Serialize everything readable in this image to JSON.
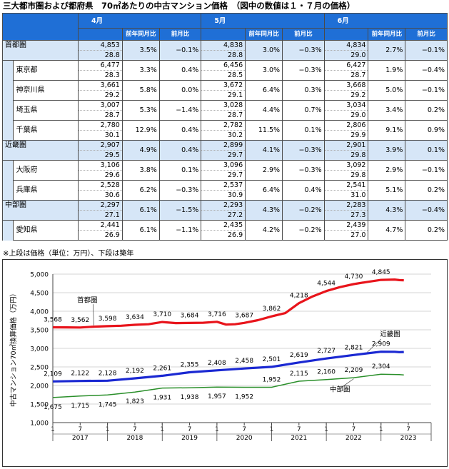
{
  "title": "三大都市圏および都府県　70㎡あたりの中古マンション価格　（図中の数値は１・７月の価格）",
  "table": {
    "months": [
      "4月",
      "5月",
      "6月"
    ],
    "sub_headers": [
      "前年同月比",
      "前月比"
    ],
    "rows": [
      {
        "name": "首都圏",
        "level": "region",
        "cells": [
          [
            "4,853",
            "28.8",
            "3.5%",
            "−0.1%"
          ],
          [
            "4,838",
            "28.8",
            "3.0%",
            "−0.3%"
          ],
          [
            "4,834",
            "29.0",
            "2.7%",
            "−0.1%"
          ]
        ]
      },
      {
        "name": "東京都",
        "level": "sub",
        "cells": [
          [
            "6,477",
            "28.3",
            "3.3%",
            "0.4%"
          ],
          [
            "6,456",
            "28.5",
            "3.0%",
            "−0.3%"
          ],
          [
            "6,427",
            "28.7",
            "1.9%",
            "−0.4%"
          ]
        ]
      },
      {
        "name": "神奈川県",
        "level": "sub",
        "cells": [
          [
            "3,661",
            "29.2",
            "5.8%",
            "0.0%"
          ],
          [
            "3,672",
            "29.1",
            "6.4%",
            "0.3%"
          ],
          [
            "3,668",
            "29.2",
            "5.0%",
            "−0.1%"
          ]
        ]
      },
      {
        "name": "埼玉県",
        "level": "sub",
        "cells": [
          [
            "3,007",
            "28.7",
            "5.3%",
            "−1.4%"
          ],
          [
            "3,028",
            "28.7",
            "4.4%",
            "0.7%"
          ],
          [
            "3,034",
            "29.0",
            "3.4%",
            "0.2%"
          ]
        ]
      },
      {
        "name": "千葉県",
        "level": "sub",
        "cells": [
          [
            "2,780",
            "30.1",
            "12.9%",
            "0.4%"
          ],
          [
            "2,782",
            "30.2",
            "11.5%",
            "0.1%"
          ],
          [
            "2,806",
            "29.9",
            "9.1%",
            "0.9%"
          ]
        ]
      },
      {
        "name": "近畿圏",
        "level": "region",
        "cells": [
          [
            "2,907",
            "29.5",
            "4.9%",
            "0.4%"
          ],
          [
            "2,899",
            "29.7",
            "4.1%",
            "−0.3%"
          ],
          [
            "2,901",
            "29.8",
            "3.9%",
            "0.1%"
          ]
        ]
      },
      {
        "name": "大阪府",
        "level": "sub",
        "cells": [
          [
            "3,106",
            "29.6",
            "3.8%",
            "0.1%"
          ],
          [
            "3,096",
            "29.7",
            "2.9%",
            "−0.3%"
          ],
          [
            "3,092",
            "29.8",
            "2.9%",
            "−0.1%"
          ]
        ]
      },
      {
        "name": "兵庫県",
        "level": "sub",
        "cells": [
          [
            "2,528",
            "30.6",
            "6.2%",
            "−0.3%"
          ],
          [
            "2,537",
            "30.9",
            "6.4%",
            "0.4%"
          ],
          [
            "2,541",
            "31.0",
            "5.1%",
            "0.2%"
          ]
        ]
      },
      {
        "name": "中部圏",
        "level": "region",
        "cells": [
          [
            "2,297",
            "27.1",
            "6.1%",
            "−1.5%"
          ],
          [
            "2,293",
            "27.2",
            "4.3%",
            "−0.2%"
          ],
          [
            "2,283",
            "27.3",
            "4.3%",
            "−0.4%"
          ]
        ]
      },
      {
        "name": "愛知県",
        "level": "sub",
        "cells": [
          [
            "2,441",
            "26.9",
            "6.1%",
            "−1.1%"
          ],
          [
            "2,435",
            "26.9",
            "4.2%",
            "−0.2%"
          ],
          [
            "2,439",
            "27.0",
            "4.7%",
            "0.2%"
          ]
        ]
      }
    ]
  },
  "note": "※上段は価格（単位：万円）、下段は築年",
  "colors": {
    "header_blue": "#1f6fd6",
    "region_fill": "#d6e6f7",
    "shutoken": "#e8141b",
    "kinki": "#1a28d2",
    "chubu": "#2a8f2a"
  },
  "chart_data": {
    "type": "line",
    "ylabel": "中古マンション70㎡換算価格（万円）",
    "ylim": [
      1000,
      5000
    ],
    "yticks": [
      "1,000",
      "1,500",
      "2,000",
      "2,500",
      "3,000",
      "3,500",
      "4,000",
      "4,500",
      "5,000"
    ],
    "x_month_labels": [
      "1",
      "7",
      "1",
      "7",
      "1",
      "7",
      "1",
      "7",
      "1",
      "7",
      "1",
      "7",
      "1",
      "7"
    ],
    "x_years": [
      "2017",
      "2018",
      "2019",
      "2020",
      "2021",
      "2022",
      "2023"
    ],
    "x_start": "2017-01",
    "x_end": "2023-12",
    "series": [
      {
        "name": "首都圏",
        "color": "#e8141b",
        "points": [
          [
            "2017-01",
            3568
          ],
          [
            "2017-04",
            3565
          ],
          [
            "2017-07",
            3562
          ],
          [
            "2017-10",
            3585
          ],
          [
            "2018-01",
            3598
          ],
          [
            "2018-04",
            3610
          ],
          [
            "2018-07",
            3634
          ],
          [
            "2018-10",
            3650
          ],
          [
            "2019-01",
            3710
          ],
          [
            "2019-04",
            3680
          ],
          [
            "2019-07",
            3684
          ],
          [
            "2019-10",
            3690
          ],
          [
            "2020-01",
            3716
          ],
          [
            "2020-03",
            3640
          ],
          [
            "2020-05",
            3650
          ],
          [
            "2020-07",
            3687
          ],
          [
            "2020-10",
            3760
          ],
          [
            "2021-01",
            3862
          ],
          [
            "2021-04",
            3950
          ],
          [
            "2021-07",
            4218
          ],
          [
            "2021-10",
            4400
          ],
          [
            "2022-01",
            4544
          ],
          [
            "2022-04",
            4650
          ],
          [
            "2022-07",
            4730
          ],
          [
            "2022-10",
            4790
          ],
          [
            "2023-01",
            4845
          ],
          [
            "2023-04",
            4853
          ],
          [
            "2023-05",
            4838
          ],
          [
            "2023-06",
            4834
          ]
        ],
        "labels": [
          [
            "2017-01",
            "3,568"
          ],
          [
            "2017-07",
            "3,562"
          ],
          [
            "2018-01",
            "3,598"
          ],
          [
            "2018-07",
            "3,634"
          ],
          [
            "2019-01",
            "3,710"
          ],
          [
            "2019-07",
            "3,684"
          ],
          [
            "2020-01",
            "3,716"
          ],
          [
            "2020-07",
            "3,687"
          ],
          [
            "2021-01",
            "3,862"
          ],
          [
            "2021-07",
            "4,218"
          ],
          [
            "2022-01",
            "4,544"
          ],
          [
            "2022-07",
            "4,730"
          ],
          [
            "2023-01",
            "4,845"
          ]
        ]
      },
      {
        "name": "近畿圏",
        "color": "#1a28d2",
        "points": [
          [
            "2017-01",
            2109
          ],
          [
            "2017-07",
            2122
          ],
          [
            "2018-01",
            2128
          ],
          [
            "2018-07",
            2192
          ],
          [
            "2019-01",
            2261
          ],
          [
            "2019-07",
            2355
          ],
          [
            "2020-01",
            2408
          ],
          [
            "2020-07",
            2458
          ],
          [
            "2021-01",
            2501
          ],
          [
            "2021-07",
            2619
          ],
          [
            "2022-01",
            2727
          ],
          [
            "2022-07",
            2821
          ],
          [
            "2023-01",
            2909
          ],
          [
            "2023-04",
            2907
          ],
          [
            "2023-05",
            2899
          ],
          [
            "2023-06",
            2901
          ]
        ],
        "labels": [
          [
            "2017-01",
            "2,109"
          ],
          [
            "2017-07",
            "2,122"
          ],
          [
            "2018-01",
            "2,128"
          ],
          [
            "2018-07",
            "2,192"
          ],
          [
            "2019-01",
            "2,261"
          ],
          [
            "2019-07",
            "2,355"
          ],
          [
            "2020-01",
            "2,408"
          ],
          [
            "2020-07",
            "2,458"
          ],
          [
            "2021-01",
            "2,501"
          ],
          [
            "2021-07",
            "2,619"
          ],
          [
            "2022-01",
            "2,727"
          ],
          [
            "2022-07",
            "2,821"
          ],
          [
            "2023-01",
            "2,909"
          ]
        ]
      },
      {
        "name": "中部圏",
        "color": "#2a8f2a",
        "points": [
          [
            "2017-01",
            1675
          ],
          [
            "2017-07",
            1715
          ],
          [
            "2018-01",
            1745
          ],
          [
            "2018-07",
            1823
          ],
          [
            "2019-01",
            1931
          ],
          [
            "2019-07",
            1938
          ],
          [
            "2020-01",
            1957
          ],
          [
            "2020-07",
            1952
          ],
          [
            "2021-01",
            1952
          ],
          [
            "2021-07",
            2115
          ],
          [
            "2022-01",
            2160
          ],
          [
            "2022-07",
            2209
          ],
          [
            "2023-01",
            2304
          ],
          [
            "2023-04",
            2297
          ],
          [
            "2023-05",
            2293
          ],
          [
            "2023-06",
            2283
          ]
        ],
        "labels": [
          [
            "2017-01",
            "1,675"
          ],
          [
            "2017-07",
            "1,715"
          ],
          [
            "2018-01",
            "1,745"
          ],
          [
            "2018-07",
            "1,823"
          ],
          [
            "2019-01",
            "1,931"
          ],
          [
            "2019-07",
            "1,938"
          ],
          [
            "2020-01",
            "1,957"
          ],
          [
            "2020-07",
            "1,952"
          ],
          [
            "2021-01",
            "1,952"
          ],
          [
            "2021-07",
            "2,115"
          ],
          [
            "2022-01",
            "2,160"
          ],
          [
            "2022-07",
            "2,209"
          ],
          [
            "2023-01",
            "2,304"
          ]
        ]
      }
    ],
    "grid": "horizontal",
    "legend": "inline labels"
  }
}
